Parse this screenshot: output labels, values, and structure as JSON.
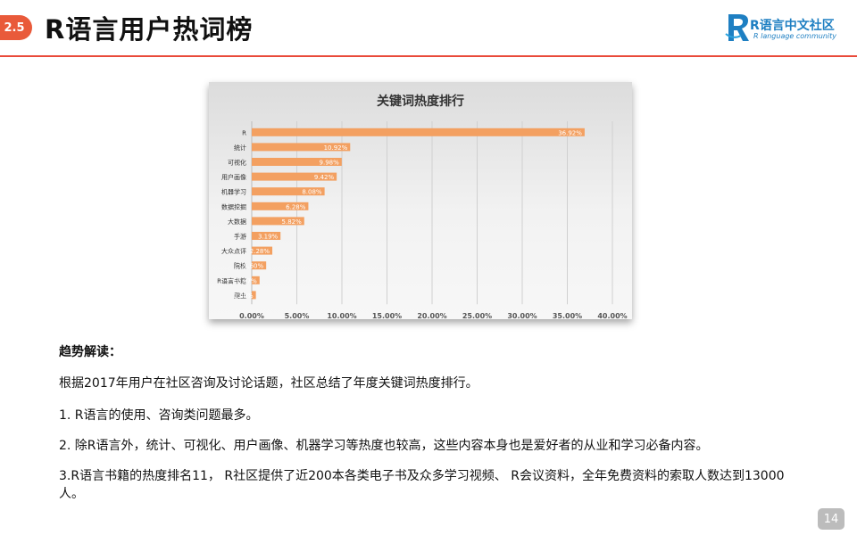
{
  "header": {
    "section_number": "2.5",
    "title": "R语言用户热词榜",
    "logo_text": "R语言中文社区",
    "logo_subtext": "R language community"
  },
  "colors": {
    "accent": "#e95a3a",
    "bar": "#f3a061",
    "logo_blue": "#1e7fc2",
    "header_rule": "#e94a3a"
  },
  "chart_data": {
    "type": "bar",
    "orientation": "horizontal",
    "title": "关键词热度排行",
    "categories": [
      "R",
      "统计",
      "可视化",
      "用户画像",
      "机器学习",
      "数据挖掘",
      "大数据",
      "手游",
      "大众点评",
      "院校",
      "R语言书籍",
      "爬虫"
    ],
    "values": [
      36.92,
      10.92,
      9.98,
      9.42,
      8.08,
      6.28,
      5.82,
      3.19,
      2.28,
      1.6,
      0.87,
      0.46
    ],
    "labels": [
      "36.92%",
      "10.92%",
      "9.98%",
      "9.42%",
      "8.08%",
      "6.28%",
      "5.82%",
      "3.19%",
      "2.28%",
      "1.60%",
      "0.87%",
      "0.46%"
    ],
    "xticks": [
      "0.00%",
      "5.00%",
      "10.00%",
      "15.00%",
      "20.00%",
      "25.00%",
      "30.00%",
      "35.00%",
      "40.00%"
    ],
    "xlim": [
      0,
      40
    ],
    "grid": true
  },
  "content": {
    "heading": "趋势解读：",
    "p1": "根据2017年用户在社区咨询及讨论话题，社区总结了年度关键词热度排行。",
    "p2": "1. R语言的使用、咨询类问题最多。",
    "p3": "2.  除R语言外，统计、可视化、用户画像、机器学习等热度也较高，这些内容本身也是爱好者的从业和学习必备内容。",
    "p4": "3.R语言书籍的热度排名11， R社区提供了近200本各类电子书及众多学习视频、 R会议资料，全年免费资料的索取人数达到13000人。"
  },
  "page_number": "14"
}
